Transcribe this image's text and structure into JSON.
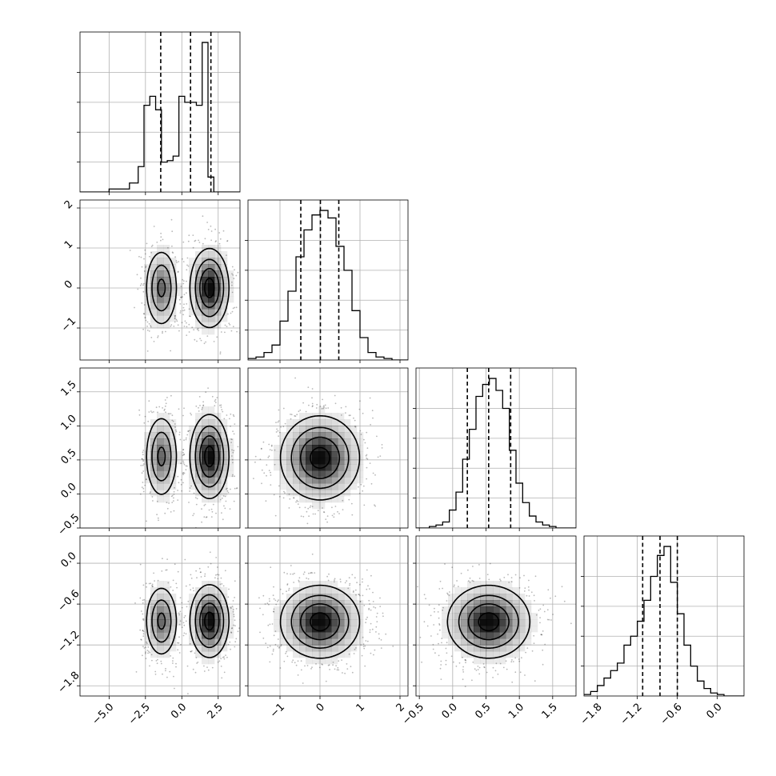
{
  "chart_data": {
    "type": "corner",
    "grid": true,
    "axes": [
      {
        "xlim": [
          -7.0,
          4.0
        ],
        "ylim": [
          -1.8,
          2.2
        ],
        "ticks": [
          -5.0,
          -2.5,
          0.0,
          2.5
        ],
        "tick_labels": [
          "−5.0",
          "−2.5",
          "0.0",
          "2.5"
        ]
      },
      {
        "xlim": [
          -1.8,
          2.2
        ],
        "ylim": [
          -1.8,
          2.2
        ],
        "ticks": [
          -1,
          0,
          1,
          2
        ],
        "tick_labels": [
          "−1",
          "0",
          "1",
          "2"
        ]
      },
      {
        "xlim": [
          -0.55,
          1.85
        ],
        "ylim": [
          -0.5,
          1.85
        ],
        "ticks": [
          -0.5,
          0.0,
          0.5,
          1.0,
          1.5
        ],
        "tick_labels": [
          "−0.5",
          "0.0",
          "0.5",
          "1.0",
          "1.5"
        ]
      },
      {
        "xlim": [
          -2.0,
          0.4
        ],
        "ylim": [
          -1.95,
          0.4
        ],
        "ticks": [
          -1.8,
          -1.2,
          -0.6,
          0.0
        ],
        "tick_labels": [
          "−1.8",
          "−1.2",
          "−0.6",
          "0.0"
        ]
      }
    ],
    "histograms": [
      {
        "var": 0,
        "bin_edges": [
          -7.0,
          -5.0,
          -3.6,
          -3.0,
          -2.6,
          -2.2,
          -1.8,
          -1.4,
          -1.0,
          -0.6,
          -0.2,
          0.2,
          0.6,
          1.0,
          1.4,
          1.8,
          2.2,
          2.6,
          3.0,
          4.0
        ],
        "counts": [
          0,
          2,
          6,
          17,
          58,
          64,
          55,
          20,
          21,
          24,
          64,
          60,
          60,
          58,
          100,
          10,
          0,
          0,
          0
        ],
        "quantiles": [
          -1.45,
          0.6,
          2.0
        ]
      },
      {
        "var": 1,
        "bin_edges": [
          -1.8,
          -1.6,
          -1.4,
          -1.2,
          -1.0,
          -0.8,
          -0.6,
          -0.4,
          -0.2,
          0.0,
          0.2,
          0.4,
          0.6,
          0.8,
          1.0,
          1.2,
          1.4,
          1.6,
          1.8,
          2.0,
          2.2
        ],
        "counts": [
          1,
          2,
          5,
          10,
          26,
          46,
          69,
          87,
          97,
          100,
          95,
          76,
          60,
          33,
          15,
          5,
          2,
          1,
          0,
          0
        ],
        "quantiles": [
          -0.48,
          0.01,
          0.47
        ]
      },
      {
        "var": 2,
        "bin_edges": [
          -0.55,
          -0.35,
          -0.25,
          -0.15,
          -0.05,
          0.05,
          0.15,
          0.25,
          0.35,
          0.45,
          0.55,
          0.65,
          0.75,
          0.85,
          0.95,
          1.05,
          1.15,
          1.25,
          1.35,
          1.45,
          1.55,
          1.85
        ],
        "counts": [
          0,
          1,
          2,
          4,
          12,
          24,
          46,
          66,
          88,
          96,
          100,
          92,
          80,
          52,
          30,
          17,
          8,
          4,
          2,
          1,
          0
        ],
        "quantiles": [
          0.22,
          0.54,
          0.87
        ]
      },
      {
        "var": 3,
        "bin_edges": [
          -2.0,
          -1.9,
          -1.8,
          -1.7,
          -1.6,
          -1.5,
          -1.4,
          -1.3,
          -1.2,
          -1.1,
          -1.0,
          -0.9,
          -0.8,
          -0.7,
          -0.6,
          -0.5,
          -0.4,
          -0.3,
          -0.2,
          -0.1,
          0.0,
          0.1,
          0.4
        ],
        "counts": [
          1,
          3,
          7,
          12,
          17,
          22,
          34,
          40,
          50,
          64,
          80,
          94,
          100,
          76,
          55,
          34,
          20,
          10,
          5,
          2,
          1,
          0
        ],
        "quantiles": [
          -1.12,
          -0.86,
          -0.6
        ]
      }
    ],
    "joint": [
      {
        "x": 0,
        "y": 1,
        "modes": [
          {
            "mx": -1.4,
            "my": 0.0,
            "sx": 0.55,
            "sy": 0.48,
            "w": 1.0
          },
          {
            "mx": 1.9,
            "my": 0.0,
            "sx": 0.65,
            "sy": 0.48,
            "w": 1.5
          }
        ]
      },
      {
        "x": 0,
        "y": 2,
        "modes": [
          {
            "mx": -1.4,
            "my": 0.55,
            "sx": 0.55,
            "sy": 0.3,
            "w": 1.0
          },
          {
            "mx": 1.9,
            "my": 0.55,
            "sx": 0.65,
            "sy": 0.3,
            "w": 1.5
          }
        ]
      },
      {
        "x": 0,
        "y": 3,
        "modes": [
          {
            "mx": -1.4,
            "my": -0.85,
            "sx": 0.55,
            "sy": 0.26,
            "w": 1.0
          },
          {
            "mx": 1.9,
            "my": -0.85,
            "sx": 0.65,
            "sy": 0.26,
            "w": 1.5
          }
        ]
      },
      {
        "x": 1,
        "y": 2,
        "modes": [
          {
            "mx": 0.0,
            "my": 0.53,
            "sx": 0.48,
            "sy": 0.3,
            "w": 1.0
          }
        ]
      },
      {
        "x": 1,
        "y": 3,
        "modes": [
          {
            "mx": 0.0,
            "my": -0.86,
            "sx": 0.48,
            "sy": 0.26,
            "w": 1.0
          }
        ]
      },
      {
        "x": 2,
        "y": 3,
        "modes": [
          {
            "mx": 0.54,
            "my": -0.86,
            "sx": 0.3,
            "sy": 0.26,
            "w": 1.0
          }
        ]
      }
    ]
  }
}
